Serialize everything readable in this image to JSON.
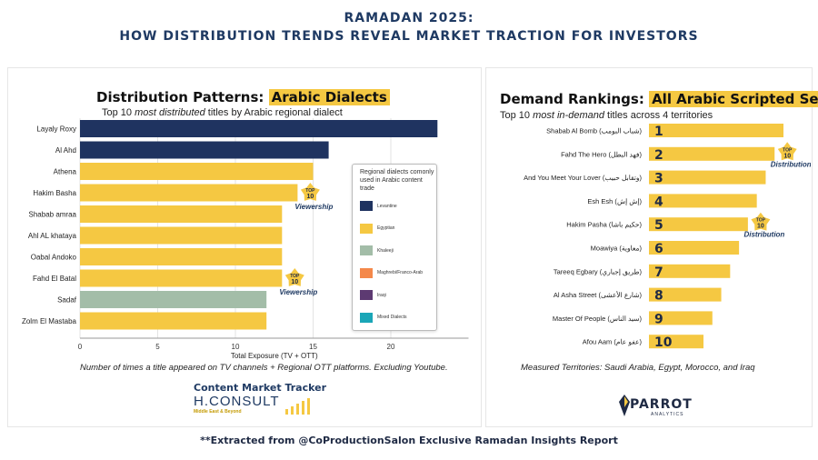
{
  "header": {
    "title_line1": "RAMADAN 2025:",
    "title_line2": "HOW DISTRIBUTION TRENDS REVEAL MARKET TRACTION FOR INVESTORS"
  },
  "left_panel": {
    "heading_plain": "Distribution Patterns: ",
    "heading_highlight": "Arabic Dialects",
    "subtitle_pre": "Top 10 ",
    "subtitle_em": "most distributed",
    "subtitle_post": " titles by Arabic regional dialect",
    "footnote": "Number of times a title appeared on TV channels + Regional OTT platforms. Excluding Youtube.",
    "legend_title": "Regional dialects comonly used in Arabic content trade",
    "legend_items": [
      {
        "label": "Levantine",
        "color": "#1f3360"
      },
      {
        "label": "Egyptian",
        "color": "#f5c842"
      },
      {
        "label": "Khaleeji",
        "color": "#a3bda8"
      },
      {
        "label": "Maghrebi/Franco-Arab",
        "color": "#f4884a"
      },
      {
        "label": "Iraqi",
        "color": "#5d3a72"
      },
      {
        "label": "Mixed Dialects",
        "color": "#1aa6b7"
      }
    ],
    "badge_top": "TOP",
    "badge_num": "10",
    "badge_caption": "Viewership"
  },
  "right_panel": {
    "heading_plain": "Demand Rankings: ",
    "heading_highlight": "All Arabic Scripted Series",
    "subtitle_pre": "Top 10 ",
    "subtitle_em": "most in-demand",
    "subtitle_post": " titles across 4 territories",
    "footnote": "Measured Territories: Saudi Arabia,  Egypt, Morocco, and Iraq",
    "badge_top": "TOP",
    "badge_num": "10",
    "badge_caption": "Distribution"
  },
  "branding": {
    "cmt": "Content Market Tracker",
    "hconsult": "H.CONSULT",
    "hconsult_sub": "Middle East  & Beyond",
    "parrot": "PARROT",
    "parrot_sub": "ANALYTICS",
    "bottom_note": "**Extracted from @CoProductionSalon Exclusive Ramadan Insights Report"
  },
  "chart_data": [
    {
      "type": "bar",
      "orientation": "horizontal",
      "categories": [
        "Layaly Roxy",
        "Al Ahd",
        "Athena",
        "Hakim Basha",
        "Shabab amraa",
        "Ahl AL khataya",
        "Oabal Andoko",
        "Fahd El Batal",
        "Sadaf",
        "Zolm El Mastaba"
      ],
      "values": [
        23,
        16,
        15,
        14,
        13,
        13,
        13,
        13,
        12,
        12
      ],
      "dialects": [
        "Levantine",
        "Levantine",
        "Egyptian",
        "Egyptian",
        "Egyptian",
        "Egyptian",
        "Egyptian",
        "Egyptian",
        "Khaleeji",
        "Egyptian"
      ],
      "xlabel": "Total Exposure (TV + OTT)",
      "xlim": [
        0,
        25
      ],
      "xticks": [
        0,
        5,
        10,
        15,
        20
      ],
      "grid": "vertical",
      "annotations": [
        "Hakim Basha",
        "Fahd El Batal"
      ]
    },
    {
      "type": "bar",
      "orientation": "horizontal",
      "categories": [
        "Shabab Al Bomb (شباب البومب)",
        "Fahd The Hero (فهد البطل)",
        "And You Meet Your Lover (وتقابل حبيب)",
        "Esh Esh (إش إش)",
        "Hakim Pasha (حكيم باشا)",
        "Moawiya (معاوية)",
        "Tareeq Egbary (طريق إجباري)",
        "Al Asha Street (شارع الأعشى)",
        "Master Of People (سيد الناس)",
        "Afou Aam (عفو عام)"
      ],
      "ranks": [
        1,
        2,
        3,
        4,
        5,
        6,
        7,
        8,
        9,
        10
      ],
      "annotations": [
        "Fahd The Hero (فهد البطل)",
        "Hakim Pasha (حكيم باشا)"
      ]
    }
  ]
}
